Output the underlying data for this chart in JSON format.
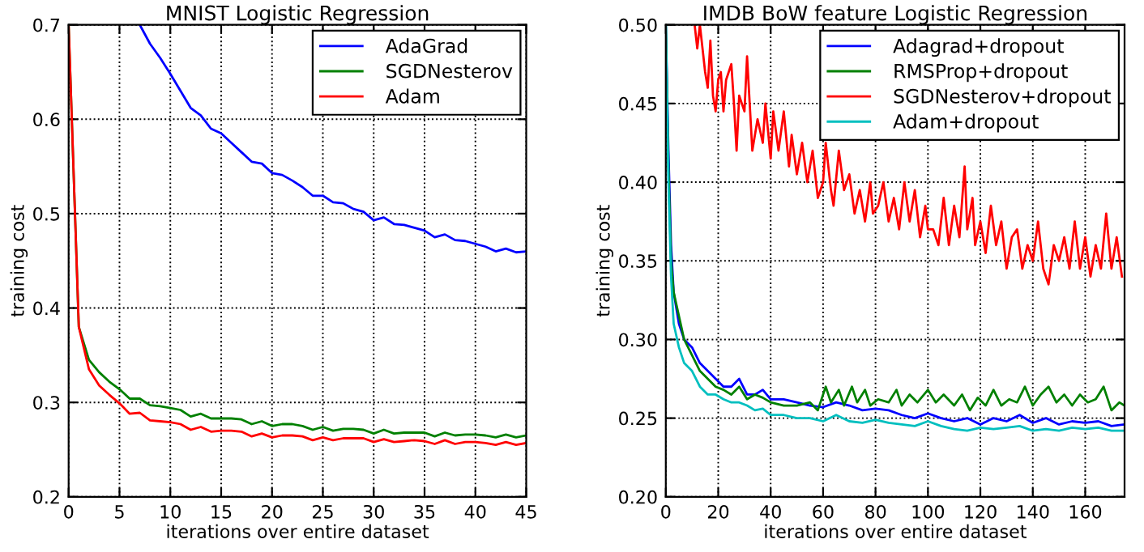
{
  "chart_data": [
    {
      "type": "line",
      "title": "MNIST Logistic Regression",
      "xlabel": "iterations over entire dataset",
      "ylabel": "training cost",
      "xlim": [
        0,
        45
      ],
      "ylim": [
        0.2,
        0.7
      ],
      "xticks": [
        0,
        5,
        10,
        15,
        20,
        25,
        30,
        35,
        40,
        45
      ],
      "yticks": [
        0.2,
        0.3,
        0.4,
        0.5,
        0.6,
        0.7
      ],
      "grid": true,
      "legend": "top right",
      "line_style": "solid",
      "series": [
        {
          "name": "AdaGrad",
          "color": "#0000ff",
          "x": [
            7,
            8,
            9,
            10,
            11,
            12,
            13,
            14,
            15,
            16,
            17,
            18,
            19,
            20,
            21,
            22,
            23,
            24,
            25,
            26,
            27,
            28,
            29,
            30,
            31,
            32,
            33,
            34,
            35,
            36,
            37,
            38,
            39,
            40,
            41,
            42,
            43,
            44,
            45
          ],
          "values": [
            0.7,
            0.68,
            0.665,
            0.648,
            0.63,
            0.612,
            0.604,
            0.59,
            0.585,
            0.575,
            0.565,
            0.555,
            0.553,
            0.543,
            0.541,
            0.535,
            0.528,
            0.519,
            0.519,
            0.512,
            0.511,
            0.505,
            0.502,
            0.493,
            0.496,
            0.489,
            0.488,
            0.485,
            0.482,
            0.475,
            0.478,
            0.472,
            0.471,
            0.468,
            0.465,
            0.46,
            0.463,
            0.459,
            0.46
          ]
        },
        {
          "name": "SGDNesterov",
          "color": "#008000",
          "x": [
            0,
            1,
            2,
            3,
            4,
            5,
            6,
            7,
            8,
            9,
            10,
            11,
            12,
            13,
            14,
            15,
            16,
            17,
            18,
            19,
            20,
            21,
            22,
            23,
            24,
            25,
            26,
            27,
            28,
            29,
            30,
            31,
            32,
            33,
            34,
            35,
            36,
            37,
            38,
            39,
            40,
            41,
            42,
            43,
            44,
            45
          ],
          "values": [
            0.7,
            0.38,
            0.345,
            0.332,
            0.322,
            0.314,
            0.304,
            0.304,
            0.297,
            0.296,
            0.294,
            0.292,
            0.285,
            0.288,
            0.283,
            0.283,
            0.283,
            0.282,
            0.277,
            0.28,
            0.275,
            0.277,
            0.277,
            0.275,
            0.271,
            0.274,
            0.27,
            0.272,
            0.272,
            0.271,
            0.267,
            0.271,
            0.267,
            0.268,
            0.268,
            0.268,
            0.264,
            0.268,
            0.265,
            0.266,
            0.266,
            0.265,
            0.263,
            0.266,
            0.263,
            0.265
          ]
        },
        {
          "name": "Adam",
          "color": "#ff0000",
          "x": [
            0,
            1,
            2,
            3,
            4,
            5,
            6,
            7,
            8,
            9,
            10,
            11,
            12,
            13,
            14,
            15,
            16,
            17,
            18,
            19,
            20,
            21,
            22,
            23,
            24,
            25,
            26,
            27,
            28,
            29,
            30,
            31,
            32,
            33,
            34,
            35,
            36,
            37,
            38,
            39,
            40,
            41,
            42,
            43,
            44,
            45
          ],
          "values": [
            0.7,
            0.38,
            0.335,
            0.318,
            0.308,
            0.299,
            0.288,
            0.289,
            0.281,
            0.28,
            0.279,
            0.277,
            0.271,
            0.274,
            0.269,
            0.27,
            0.27,
            0.269,
            0.264,
            0.267,
            0.263,
            0.265,
            0.265,
            0.264,
            0.26,
            0.263,
            0.26,
            0.262,
            0.262,
            0.262,
            0.258,
            0.261,
            0.258,
            0.259,
            0.26,
            0.259,
            0.256,
            0.26,
            0.256,
            0.258,
            0.258,
            0.257,
            0.255,
            0.258,
            0.255,
            0.257
          ]
        }
      ]
    },
    {
      "type": "line",
      "title": "IMDB BoW feature Logistic Regression",
      "xlabel": "iterations over entire dataset",
      "ylabel": "training cost",
      "xlim": [
        0,
        175
      ],
      "ylim": [
        0.2,
        0.5
      ],
      "xticks": [
        0,
        20,
        40,
        60,
        80,
        100,
        120,
        140,
        160
      ],
      "yticks": [
        {
          "value": 0.2,
          "label": "0.20"
        },
        0.25,
        {
          "value": 0.3,
          "label": "0.30"
        },
        0.35,
        {
          "value": 0.4,
          "label": "0.40"
        },
        0.45,
        {
          "value": 0.5,
          "label": "0.50"
        }
      ],
      "grid": true,
      "legend": "top right",
      "line_style": "solid",
      "series": [
        {
          "name": "Adagrad+dropout",
          "color": "#0000ff",
          "x": [
            0,
            1,
            2,
            3,
            5,
            7,
            10,
            13,
            16,
            19,
            22,
            25,
            28,
            31,
            34,
            37,
            40,
            45,
            50,
            55,
            60,
            65,
            70,
            75,
            80,
            85,
            90,
            95,
            100,
            105,
            110,
            115,
            120,
            125,
            130,
            135,
            140,
            145,
            150,
            155,
            160,
            165,
            170,
            175
          ],
          "values": [
            0.5,
            0.42,
            0.36,
            0.33,
            0.31,
            0.3,
            0.295,
            0.285,
            0.28,
            0.275,
            0.27,
            0.27,
            0.275,
            0.265,
            0.265,
            0.268,
            0.262,
            0.262,
            0.26,
            0.258,
            0.257,
            0.26,
            0.258,
            0.255,
            0.256,
            0.255,
            0.252,
            0.25,
            0.253,
            0.25,
            0.248,
            0.25,
            0.246,
            0.25,
            0.248,
            0.252,
            0.247,
            0.25,
            0.246,
            0.248,
            0.247,
            0.248,
            0.245,
            0.246
          ]
        },
        {
          "name": "RMSProp+dropout",
          "color": "#008000",
          "x": [
            0,
            1,
            2,
            3,
            5,
            7,
            10,
            13,
            16,
            19,
            22,
            25,
            28,
            31,
            34,
            37,
            40,
            45,
            50,
            55,
            58,
            61,
            63,
            66,
            68,
            71,
            73,
            76,
            78,
            81,
            85,
            88,
            90,
            93,
            96,
            100,
            103,
            106,
            110,
            113,
            116,
            119,
            122,
            125,
            128,
            131,
            134,
            137,
            140,
            143,
            146,
            149,
            152,
            155,
            158,
            161,
            164,
            167,
            170,
            173,
            175
          ],
          "values": [
            0.5,
            0.41,
            0.35,
            0.33,
            0.315,
            0.3,
            0.29,
            0.28,
            0.275,
            0.27,
            0.268,
            0.265,
            0.27,
            0.262,
            0.265,
            0.263,
            0.26,
            0.258,
            0.258,
            0.26,
            0.255,
            0.27,
            0.26,
            0.268,
            0.258,
            0.27,
            0.26,
            0.268,
            0.258,
            0.262,
            0.26,
            0.268,
            0.258,
            0.265,
            0.26,
            0.268,
            0.26,
            0.265,
            0.258,
            0.265,
            0.255,
            0.263,
            0.258,
            0.268,
            0.258,
            0.262,
            0.26,
            0.27,
            0.258,
            0.265,
            0.27,
            0.26,
            0.265,
            0.258,
            0.265,
            0.26,
            0.262,
            0.27,
            0.255,
            0.26,
            0.258
          ]
        },
        {
          "name": "SGDNesterov+dropout",
          "color": "#ff0000",
          "x": [
            11,
            12,
            13,
            15,
            16,
            17,
            18,
            19,
            20,
            21,
            22,
            23,
            25,
            26,
            27,
            28,
            30,
            31,
            33,
            35,
            37,
            38,
            40,
            41,
            43,
            45,
            47,
            48,
            50,
            52,
            54,
            56,
            58,
            60,
            61,
            63,
            64,
            66,
            68,
            70,
            72,
            74,
            76,
            78,
            79,
            81,
            83,
            85,
            87,
            89,
            91,
            93,
            95,
            97,
            99,
            100,
            102,
            104,
            106,
            108,
            110,
            112,
            114,
            115,
            117,
            118,
            120,
            122,
            124,
            126,
            128,
            130,
            132,
            134,
            136,
            138,
            140,
            142,
            144,
            146,
            148,
            150,
            152,
            154,
            156,
            158,
            160,
            162,
            164,
            166,
            168,
            170,
            172,
            174
          ],
          "values": [
            0.5,
            0.485,
            0.5,
            0.47,
            0.46,
            0.49,
            0.455,
            0.445,
            0.465,
            0.47,
            0.445,
            0.465,
            0.475,
            0.45,
            0.42,
            0.455,
            0.445,
            0.48,
            0.42,
            0.44,
            0.425,
            0.45,
            0.415,
            0.445,
            0.42,
            0.445,
            0.41,
            0.43,
            0.405,
            0.425,
            0.4,
            0.42,
            0.39,
            0.4,
            0.425,
            0.395,
            0.385,
            0.42,
            0.395,
            0.405,
            0.38,
            0.395,
            0.375,
            0.4,
            0.38,
            0.385,
            0.4,
            0.375,
            0.39,
            0.37,
            0.4,
            0.375,
            0.395,
            0.365,
            0.385,
            0.37,
            0.37,
            0.36,
            0.39,
            0.36,
            0.385,
            0.365,
            0.41,
            0.37,
            0.39,
            0.36,
            0.375,
            0.355,
            0.385,
            0.36,
            0.375,
            0.345,
            0.365,
            0.37,
            0.345,
            0.36,
            0.35,
            0.375,
            0.345,
            0.335,
            0.36,
            0.35,
            0.365,
            0.345,
            0.375,
            0.345,
            0.365,
            0.34,
            0.36,
            0.345,
            0.38,
            0.345,
            0.365,
            0.34
          ]
        },
        {
          "name": "Adam+dropout",
          "color": "#00bfbf",
          "x": [
            0,
            1,
            2,
            3,
            5,
            7,
            10,
            13,
            16,
            19,
            22,
            25,
            28,
            31,
            34,
            37,
            40,
            45,
            50,
            55,
            60,
            65,
            70,
            75,
            80,
            85,
            90,
            95,
            100,
            105,
            110,
            115,
            120,
            125,
            130,
            135,
            140,
            145,
            150,
            155,
            160,
            165,
            170,
            175
          ],
          "values": [
            0.5,
            0.4,
            0.34,
            0.31,
            0.295,
            0.285,
            0.28,
            0.27,
            0.265,
            0.265,
            0.262,
            0.26,
            0.26,
            0.258,
            0.255,
            0.256,
            0.252,
            0.252,
            0.25,
            0.25,
            0.248,
            0.252,
            0.248,
            0.247,
            0.249,
            0.247,
            0.246,
            0.245,
            0.248,
            0.245,
            0.243,
            0.242,
            0.244,
            0.243,
            0.244,
            0.245,
            0.242,
            0.243,
            0.242,
            0.244,
            0.243,
            0.244,
            0.242,
            0.242
          ]
        }
      ]
    }
  ]
}
